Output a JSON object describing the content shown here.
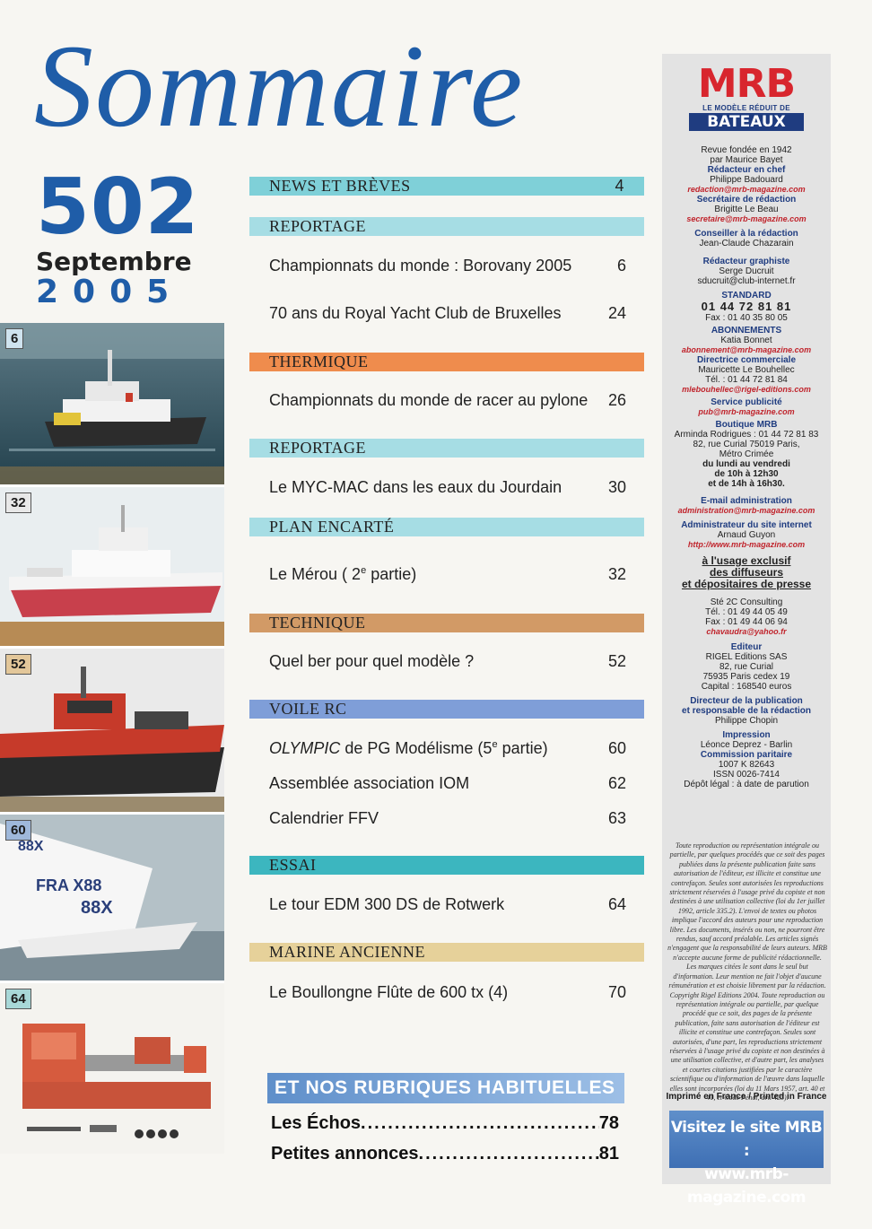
{
  "masthead": {
    "title": "Sommaire",
    "issue_number": "502",
    "month": "Septembre",
    "year": "2005"
  },
  "photos": [
    {
      "badge": "6"
    },
    {
      "badge": "32"
    },
    {
      "badge": "52"
    },
    {
      "badge": "60"
    },
    {
      "badge": "64"
    }
  ],
  "photo_texts": {
    "sail_1": "FRA X88",
    "sail_2": "88X",
    "sail_3": "88X"
  },
  "sections": [
    {
      "heading": "NEWS ET BRÈVES",
      "page": "4",
      "color": "#7fd0d8",
      "entries": []
    },
    {
      "heading": "REPORTAGE",
      "page": "",
      "color": "#a6dde4",
      "entries": [
        {
          "title": "Championnats du monde : Borovany 2005",
          "page": "6"
        },
        {
          "title": "70 ans du Royal Yacht Club de Bruxelles",
          "page": "24"
        }
      ]
    },
    {
      "heading": "THERMIQUE",
      "page": "",
      "color": "#ef8c4d",
      "entries": [
        {
          "title": "Championnats du monde de racer au pylone",
          "page": "26"
        }
      ]
    },
    {
      "heading": "REPORTAGE",
      "page": "",
      "color": "#a6dde4",
      "entries": [
        {
          "title": "Le MYC-MAC dans les eaux du Jourdain",
          "page": "30"
        }
      ]
    },
    {
      "heading": "PLAN ENCARTÉ",
      "page": "",
      "color": "#a6dde4",
      "entries": [
        {
          "title_main": "Le Mérou ( 2",
          "title_sup": "e",
          "title_rest": " partie)",
          "page": "32"
        }
      ]
    },
    {
      "heading": "TECHNIQUE",
      "page": "",
      "color": "#d29a66",
      "entries": [
        {
          "title": "Quel ber pour quel modèle ?",
          "page": "52"
        }
      ]
    },
    {
      "heading": "VOILE RC",
      "page": "",
      "color": "#7f9ed8",
      "entries": [
        {
          "title_italic": "OLYMPIC",
          "title_main": " de PG Modélisme (5",
          "title_sup": "e",
          "title_rest": " partie)",
          "page": "60"
        },
        {
          "title": "Assemblée association IOM",
          "page": "62"
        },
        {
          "title": "Calendrier FFV",
          "page": "63"
        }
      ]
    },
    {
      "heading": "ESSAI",
      "page": "",
      "color": "#3cb6bf",
      "entries": [
        {
          "title": "Le tour EDM 300 DS de Rotwerk",
          "page": "64"
        }
      ]
    },
    {
      "heading": "MARINE ANCIENNE",
      "page": "",
      "color": "#e6d19a",
      "entries": [
        {
          "title": "Le Boullongne Flûte de 600 tx (4)",
          "page": "70"
        }
      ]
    }
  ],
  "rubriques": {
    "heading": "ET NOS RUBRIQUES HABITUELLES",
    "items": [
      {
        "label": "Les Échos",
        "page": "78"
      },
      {
        "label": "Petites annonces",
        "page": "81"
      }
    ]
  },
  "sidebar": {
    "logo_main": "MRB",
    "logo_sub": "LE MODÈLE RÉDUIT DE",
    "logo_bottom": "BATEAUX",
    "founded_1": "Revue fondée en 1942",
    "founded_2": "par Maurice Bayet",
    "redac_chef_h": "Rédacteur en chef",
    "redac_chef": "Philippe Badouard",
    "redac_chef_mail": "redaction@mrb-magazine.com",
    "secretaire_h": "Secrétaire de rédaction",
    "secretaire": "Brigitte Le Beau",
    "secretaire_mail": "secretaire@mrb-magazine.com",
    "conseiller_h": "Conseiller à la rédaction",
    "conseiller": "Jean-Claude Chazarain",
    "graphiste_h": "Rédacteur graphiste",
    "graphiste": "Serge Ducruit",
    "graphiste_mail": "sducruit@club-internet.fr",
    "standard_h": "STANDARD",
    "standard_tel": "01 44 72 81 81",
    "standard_fax": "Fax : 01 40 35 80 05",
    "abonnements_h": "ABONNEMENTS",
    "abonnements": "Katia Bonnet",
    "abonnements_mail": "abonnement@mrb-magazine.com",
    "commerciale_h": "Directrice commerciale",
    "commerciale": "Mauricette Le Bouhellec",
    "commerciale_tel": "Tél. : 01 44 72 81 84",
    "commerciale_mail": "mlebouhellec@rigel-editions.com",
    "pub_h": "Service publicité",
    "pub_mail": "pub@mrb-magazine.com",
    "boutique_h": "Boutique MRB",
    "boutique_1": "Arminda Rodrigues : 01 44 72 81 83",
    "boutique_2": "82, rue Curial 75019 Paris,",
    "boutique_3": "Métro Crimée",
    "boutique_4": "du lundi au vendredi",
    "boutique_5": "de 10h à 12h30",
    "boutique_6": "et de 14h à 16h30.",
    "admin_mail_h": "E-mail administration",
    "admin_mail": "administration@mrb-magazine.com",
    "webadmin_h": "Administrateur du site internet",
    "webadmin": "Arnaud Guyon",
    "webadmin_url": "http://www.mrb-magazine.com",
    "usage_1": "à l'usage exclusif",
    "usage_2": "des diffuseurs",
    "usage_3": "et dépositaires de presse",
    "consult_1": "Sté 2C Consulting",
    "consult_2": "Tél. : 01 49 44 05 49",
    "consult_3": "Fax : 01 49 44 06 94",
    "consult_mail": "chavaudra@yahoo.fr",
    "editeur_h": "Editeur",
    "editeur_1": "RIGEL Editions SAS",
    "editeur_2": "82, rue Curial",
    "editeur_3": "75935 Paris cedex 19",
    "editeur_4": "Capital : 168540 euros",
    "directeur_h1": "Directeur de la publication",
    "directeur_h2": "et responsable de la rédaction",
    "directeur": "Philippe Chopin",
    "impression_h": "Impression",
    "impression": "Léonce Deprez - Barlin",
    "commission_h": "Commission paritaire",
    "commission_1": "1007 K 82643",
    "commission_2": "ISSN 0026-7414",
    "commission_3": "Dépôt légal : à date de parution",
    "legal": "Toute reproduction ou représentation intégrale ou partielle, par quelques procédés que ce soit des pages publiées dans la présente publication faite sans autorisation de l'éditeur, est illicite et constitue une contrefaçon. Seules sont autorisées les reproductions strictement réservées à l'usage privé du copiste et non destinées à une utilisation collective (loi du 1er juillet 1992, article 335.2). L'envoi de textes ou photos implique l'accord des auteurs pour une reproduction libre. Les documents, insérés ou non, ne pourront être rendus, sauf accord préalable. Les articles signés n'engagent que la responsabilité de leurs auteurs. MRB n'accepte aucune forme de publicité rédactionnelle. Les marques citées le sont dans le seul but d'information. Leur mention ne fait l'objet d'aucune rémunération et est choisie librement par la rédaction. Copyright Rigel Editions 2004. Toute reproduction ou représentation intégrale ou partielle, par quelque procédé que ce soit, des pages de la présente publication, faite sans autorisation de l'éditeur est illicite et constitue une contrefaçon. Seules sont autorisées, d'une part, les reproductions strictement réservées à l'usage privé du copiste et non destinées à une utilisation collective, et d'autre part, les analyses et courtes citations justifiées par le caractère scientifique ou d'information de l'œuvre dans laquelle elles sont incorporées (loi du 11 Mars 1957, art. 40 et 41, et Code Pénal, art. 425).",
    "printed": "Imprimé en France / Printed in France",
    "visit_1": "Visitez le site MRB :",
    "visit_2": "www.mrb-magazine.com"
  }
}
